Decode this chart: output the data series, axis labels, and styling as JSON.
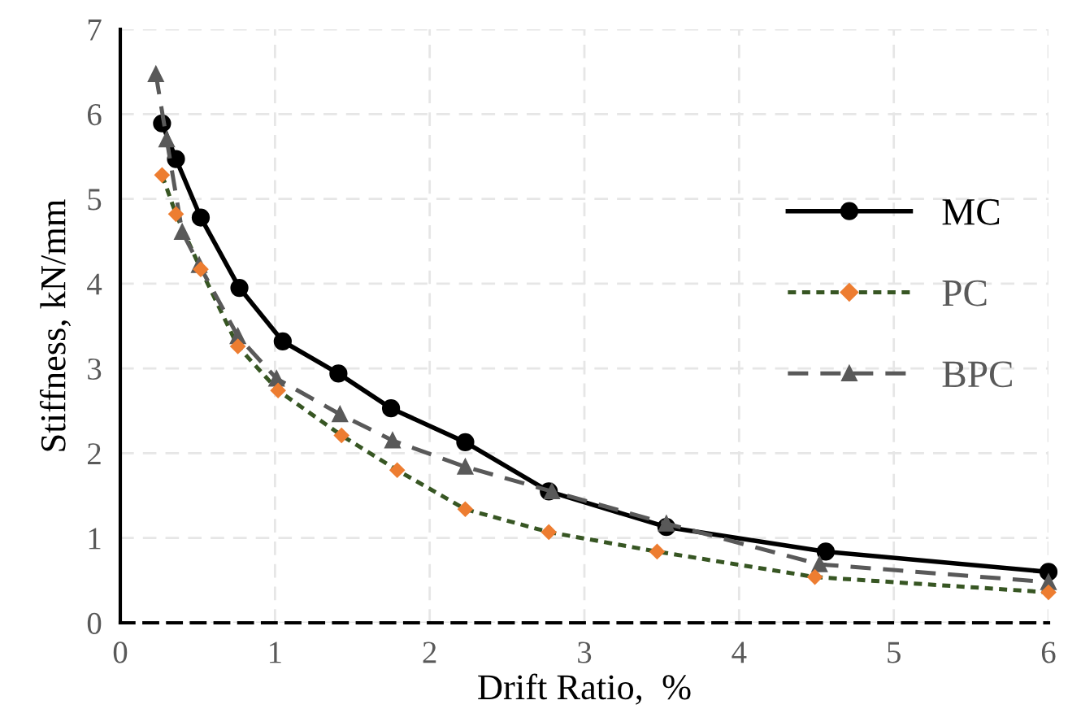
{
  "chart_data": {
    "type": "line",
    "xlabel": "Drift Ratio,  %",
    "ylabel": "Stiffness, kN/mm",
    "xlim": [
      0,
      6
    ],
    "ylim": [
      0,
      7
    ],
    "xticks": [
      0,
      1,
      2,
      3,
      4,
      5,
      6
    ],
    "yticks": [
      0,
      1,
      2,
      3,
      4,
      5,
      6,
      7
    ],
    "grid": true,
    "legend": "right",
    "series": [
      {
        "name": "MC",
        "color": "#000000",
        "marker": "circle",
        "line_style": "solid",
        "x": [
          0.27,
          0.36,
          0.52,
          0.77,
          1.05,
          1.41,
          1.75,
          2.23,
          2.77,
          3.53,
          4.56,
          6.0
        ],
        "values": [
          5.89,
          5.47,
          4.78,
          3.95,
          3.32,
          2.94,
          2.53,
          2.13,
          1.55,
          1.13,
          0.84,
          0.6
        ]
      },
      {
        "name": "PC",
        "color": "#375623",
        "colors": [
          "#ed7d31",
          "#ed7d31",
          "#ed7d31",
          "#ed7d31",
          "#ed7d31",
          "#ed7d31",
          "#ed7d31",
          "#ed7d31",
          "#ed7d31",
          "#ed7d31",
          "#ed7d31",
          "#ed7d31"
        ],
        "marker": "diamond",
        "line_style": "dotted",
        "x": [
          0.27,
          0.36,
          0.52,
          0.76,
          1.02,
          1.43,
          1.79,
          2.23,
          2.77,
          3.47,
          4.49,
          6.0
        ],
        "values": [
          5.28,
          4.82,
          4.17,
          3.26,
          2.74,
          2.21,
          1.8,
          1.34,
          1.07,
          0.84,
          0.54,
          0.36
        ]
      },
      {
        "name": "BPC",
        "color": "#595959",
        "marker": "triangle",
        "line_style": "dashed",
        "x": [
          0.23,
          0.3,
          0.4,
          0.51,
          0.76,
          1.01,
          1.42,
          1.76,
          2.23,
          2.79,
          3.53,
          4.52,
          6.0
        ],
        "values": [
          6.47,
          5.7,
          4.61,
          4.22,
          3.38,
          2.88,
          2.46,
          2.15,
          1.84,
          1.55,
          1.17,
          0.69,
          0.48
        ]
      }
    ]
  }
}
